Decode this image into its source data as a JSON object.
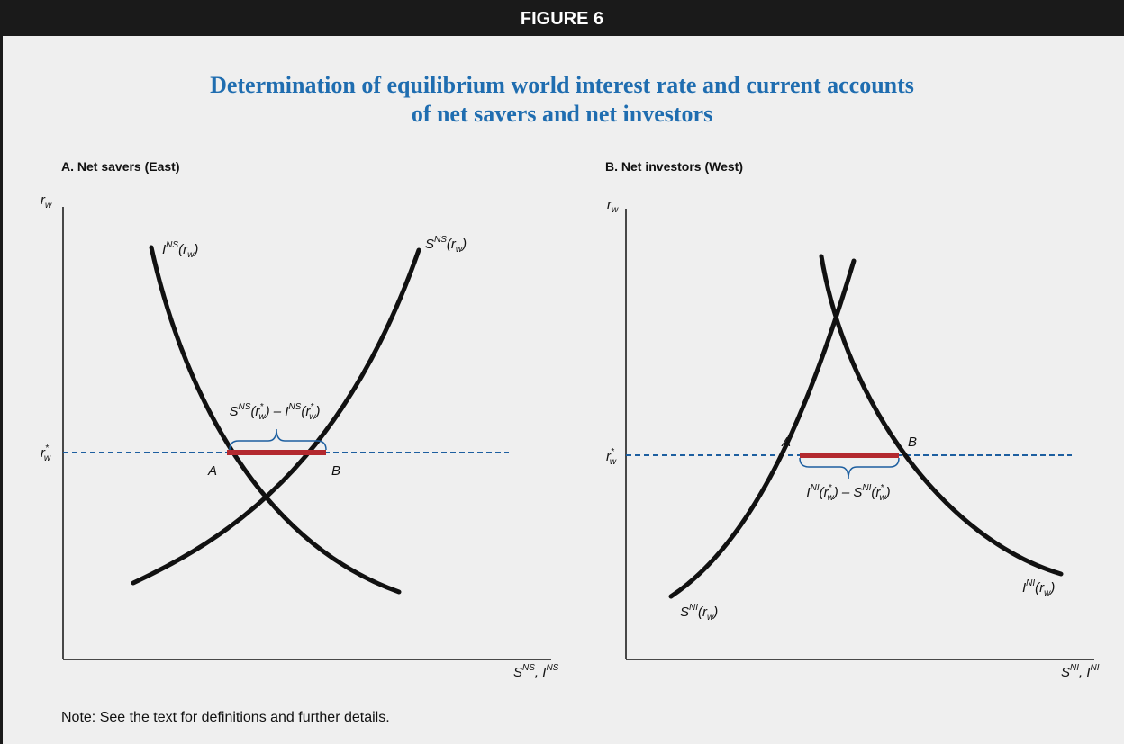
{
  "header": {
    "banner": "FIGURE 6",
    "title_lines": [
      "Determination of equilibrium world interest rate and current accounts",
      "of net savers and net investors"
    ]
  },
  "panels": [
    {
      "title": "A. Net savers (East)",
      "y_axis": [
        "r",
        {
          "sub": "w"
        }
      ],
      "x_axis": [
        "S",
        {
          "sup": "NS"
        },
        ", I",
        {
          "sup": "NS"
        }
      ],
      "r_star": [
        "r",
        {
          "sup": "*"
        },
        {
          "sub": "w"
        }
      ],
      "curves": [
        [
          "I",
          {
            "sup": "NS"
          },
          "(r",
          {
            "sub": "w"
          },
          ")"
        ],
        [
          "S",
          {
            "sup": "NS"
          },
          "(r",
          {
            "sub": "w"
          },
          ")"
        ]
      ],
      "points": [
        "A",
        "B"
      ],
      "gap_label": [
        "S",
        {
          "sup": "NS"
        },
        "(r",
        {
          "sup": "*"
        },
        {
          "sub": "w"
        },
        ") – I",
        {
          "sup": "NS"
        },
        "(r",
        {
          "sup": "*"
        },
        {
          "sub": "w"
        },
        ")"
      ]
    },
    {
      "title": "B. Net investors (West)",
      "y_axis": [
        "r",
        {
          "sub": "w"
        }
      ],
      "x_axis": [
        "S",
        {
          "sup": "NI"
        },
        ", I",
        {
          "sup": "NI"
        }
      ],
      "r_star": [
        "r",
        {
          "sup": "*"
        },
        {
          "sub": "w"
        }
      ],
      "curves": [
        [
          "S",
          {
            "sup": "NI"
          },
          "(r",
          {
            "sub": "w"
          },
          ")"
        ],
        [
          "I",
          {
            "sup": "NI"
          },
          "(r",
          {
            "sub": "w"
          },
          ")"
        ]
      ],
      "points": [
        "A",
        "B"
      ],
      "gap_label": [
        "I",
        {
          "sup": "NI"
        },
        "(r",
        {
          "sup": "*"
        },
        {
          "sub": "w"
        },
        ") – S",
        {
          "sup": "NI"
        },
        "(r",
        {
          "sup": "*"
        },
        {
          "sub": "w"
        },
        ")"
      ]
    }
  ],
  "note": "Note: See the text for definitions and further details."
}
